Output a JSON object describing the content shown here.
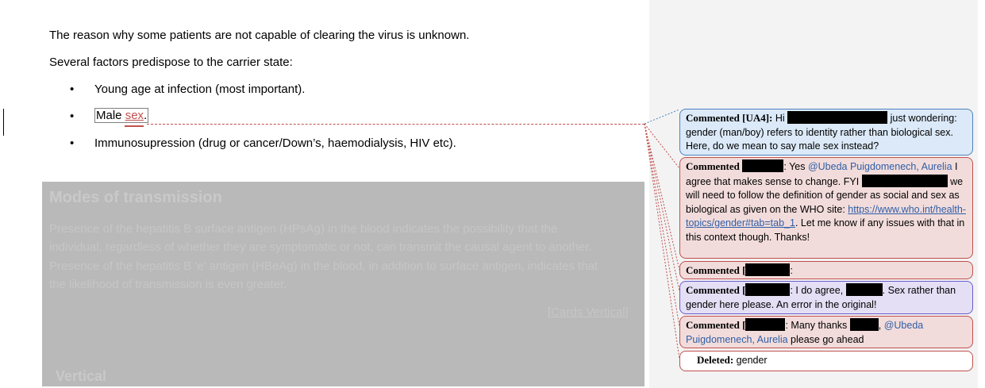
{
  "document": {
    "para1": "The reason why some patients are not capable of clearing the virus is unknown.",
    "para2": "Several factors predispose to the carrier state:",
    "bullet_glyph": "•",
    "bullets": [
      "Young age at infection (most important).",
      "Male",
      "Immunosupression (drug or cancer/Down’s, haemodialysis, HIV etc)."
    ],
    "inserted_word": "sex",
    "inserted_punct": ".",
    "ghost": {
      "heading": "Modes of transmission",
      "lines": [
        "Presence of the hepatitis B surface antigen (HPsAg) in the blood indicates the possibility that the",
        "individual, regardless of whether they are symptomatic or not, can transmit the causal agent to another.",
        "Presence of the hepatitis B 'e' antigen (HBeAg) in the blood, in addition to surface antigen, indicates that",
        "the likelihood of transmission is even greater."
      ],
      "link": "[Cards Vertical]",
      "subheading": "Vertical"
    }
  },
  "comments": [
    {
      "head": "Commented [UA4]:",
      "text_a": " Hi ",
      "text_b": " just wondering: gender (man/boy) refers to identity rather than biological sex. Here, do we mean to say male sex instead?"
    },
    {
      "head": "Commented",
      "text_a": ": Yes ",
      "mention": "@Ubeda Puigdomenech, Aurelia",
      "text_b": " I agree that makes sense to change. FYI ",
      "text_c": " we will need to follow the definition of gender as social and sex as biological as given on the WHO site: ",
      "link": "https://www.who.int/health-topics/gender#tab=tab_1",
      "text_d": ". Let me know if any issues with that in this context though. Thanks!"
    },
    {
      "head": "Commented [",
      "text_a": ":"
    },
    {
      "head": "Commented [",
      "text_a": ": I do agree, ",
      "text_b": ".  Sex rather than gender here please.  An error in the original!"
    },
    {
      "head": "Commented [",
      "text_a": ": Many thanks ",
      "text_b": ", ",
      "mention": "@Ubeda Puigdomenech, Aurelia",
      "text_c": " please go ahead"
    },
    {
      "head": "Deleted:",
      "text_a": " gender"
    }
  ],
  "colors": {
    "comment_border": "#c0504d",
    "comment_bg": "#f2dcdb",
    "active_border": "#4f81bd",
    "active_bg": "#dbe9f8",
    "reply_border": "#6a5acd",
    "reply_bg": "#e4dff5"
  }
}
